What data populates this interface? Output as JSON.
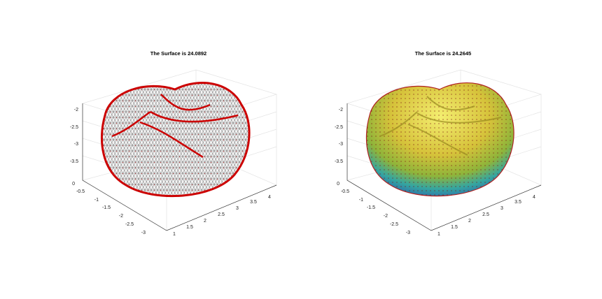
{
  "panels": [
    {
      "title": "The Surface is 24.0892",
      "zticks": [
        "-2",
        "-2.5",
        "-3",
        "-3.5"
      ],
      "yticks": [
        "0",
        "-0.5",
        "-1",
        "-1.5",
        "-2",
        "-2.5",
        "-3"
      ],
      "xticks": [
        "1",
        "1.5",
        "2",
        "2.5",
        "3",
        "3.5",
        "4"
      ]
    },
    {
      "title": "The Surface is 24.2645",
      "zticks": [
        "-2",
        "-2.5",
        "-3",
        "-3.5"
      ],
      "yticks": [
        "0",
        "-0.5",
        "-1",
        "-1.5",
        "-2",
        "-2.5",
        "-3"
      ],
      "xticks": [
        "1",
        "1.5",
        "2",
        "2.5",
        "3",
        "3.5",
        "4"
      ]
    }
  ]
}
